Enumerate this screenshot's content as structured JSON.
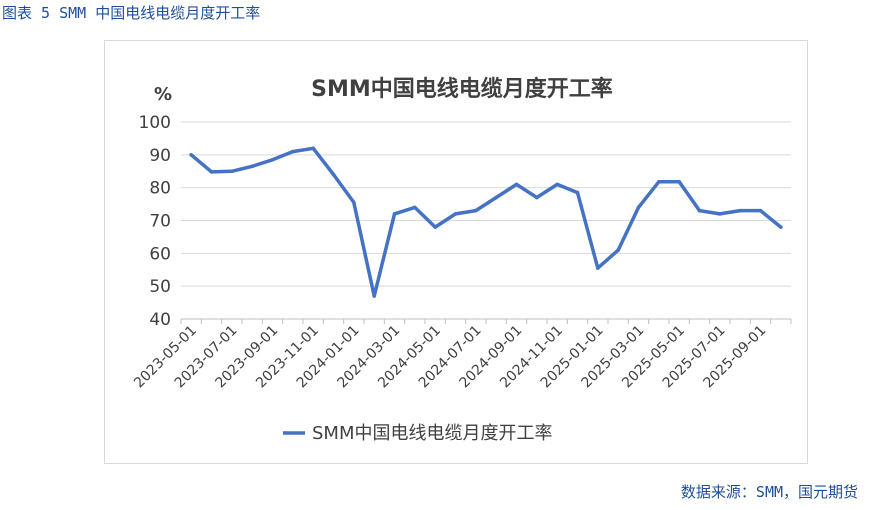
{
  "caption": "图表 5 SMM 中国电线电缆月度开工率",
  "source": "数据来源：SMM，国元期货",
  "chart_data": {
    "type": "line",
    "title": "SMM中国电线电缆月度开工率",
    "ylabel": "%",
    "xlabel": "",
    "ylim": [
      40,
      100
    ],
    "yticks": [
      40,
      50,
      60,
      70,
      80,
      90,
      100
    ],
    "grid": true,
    "legend_position": "bottom",
    "x": [
      "2023-05-01",
      "2023-06-01",
      "2023-07-01",
      "2023-08-01",
      "2023-09-01",
      "2023-10-01",
      "2023-11-01",
      "2023-12-01",
      "2024-01-01",
      "2024-02-01",
      "2024-03-01",
      "2024-04-01",
      "2024-05-01",
      "2024-06-01",
      "2024-07-01",
      "2024-08-01",
      "2024-09-01",
      "2024-10-01",
      "2024-11-01",
      "2024-12-01",
      "2025-01-01",
      "2025-02-01",
      "2025-03-01",
      "2025-04-01",
      "2025-05-01",
      "2025-06-01",
      "2025-07-01",
      "2025-08-01",
      "2025-09-01",
      "2025-10-01"
    ],
    "x_tick_labels": [
      "2023-05-01",
      "2023-07-01",
      "2023-09-01",
      "2023-11-01",
      "2024-01-01",
      "2024-03-01",
      "2024-05-01",
      "2024-07-01",
      "2024-09-01",
      "2024-11-01",
      "2025-01-01",
      "2025-03-01",
      "2025-05-01",
      "2025-07-01",
      "2025-09-01"
    ],
    "series": [
      {
        "name": "SMM中国电线电缆月度开工率",
        "color": "#4472c4",
        "values": [
          90,
          84.8,
          85,
          86.5,
          88.5,
          91,
          92,
          84,
          75.5,
          47,
          72,
          74,
          68,
          72,
          73,
          77,
          81,
          77,
          81,
          78.5,
          55.5,
          61,
          74,
          81.8,
          81.8,
          73,
          72,
          73,
          73,
          68
        ]
      }
    ]
  }
}
